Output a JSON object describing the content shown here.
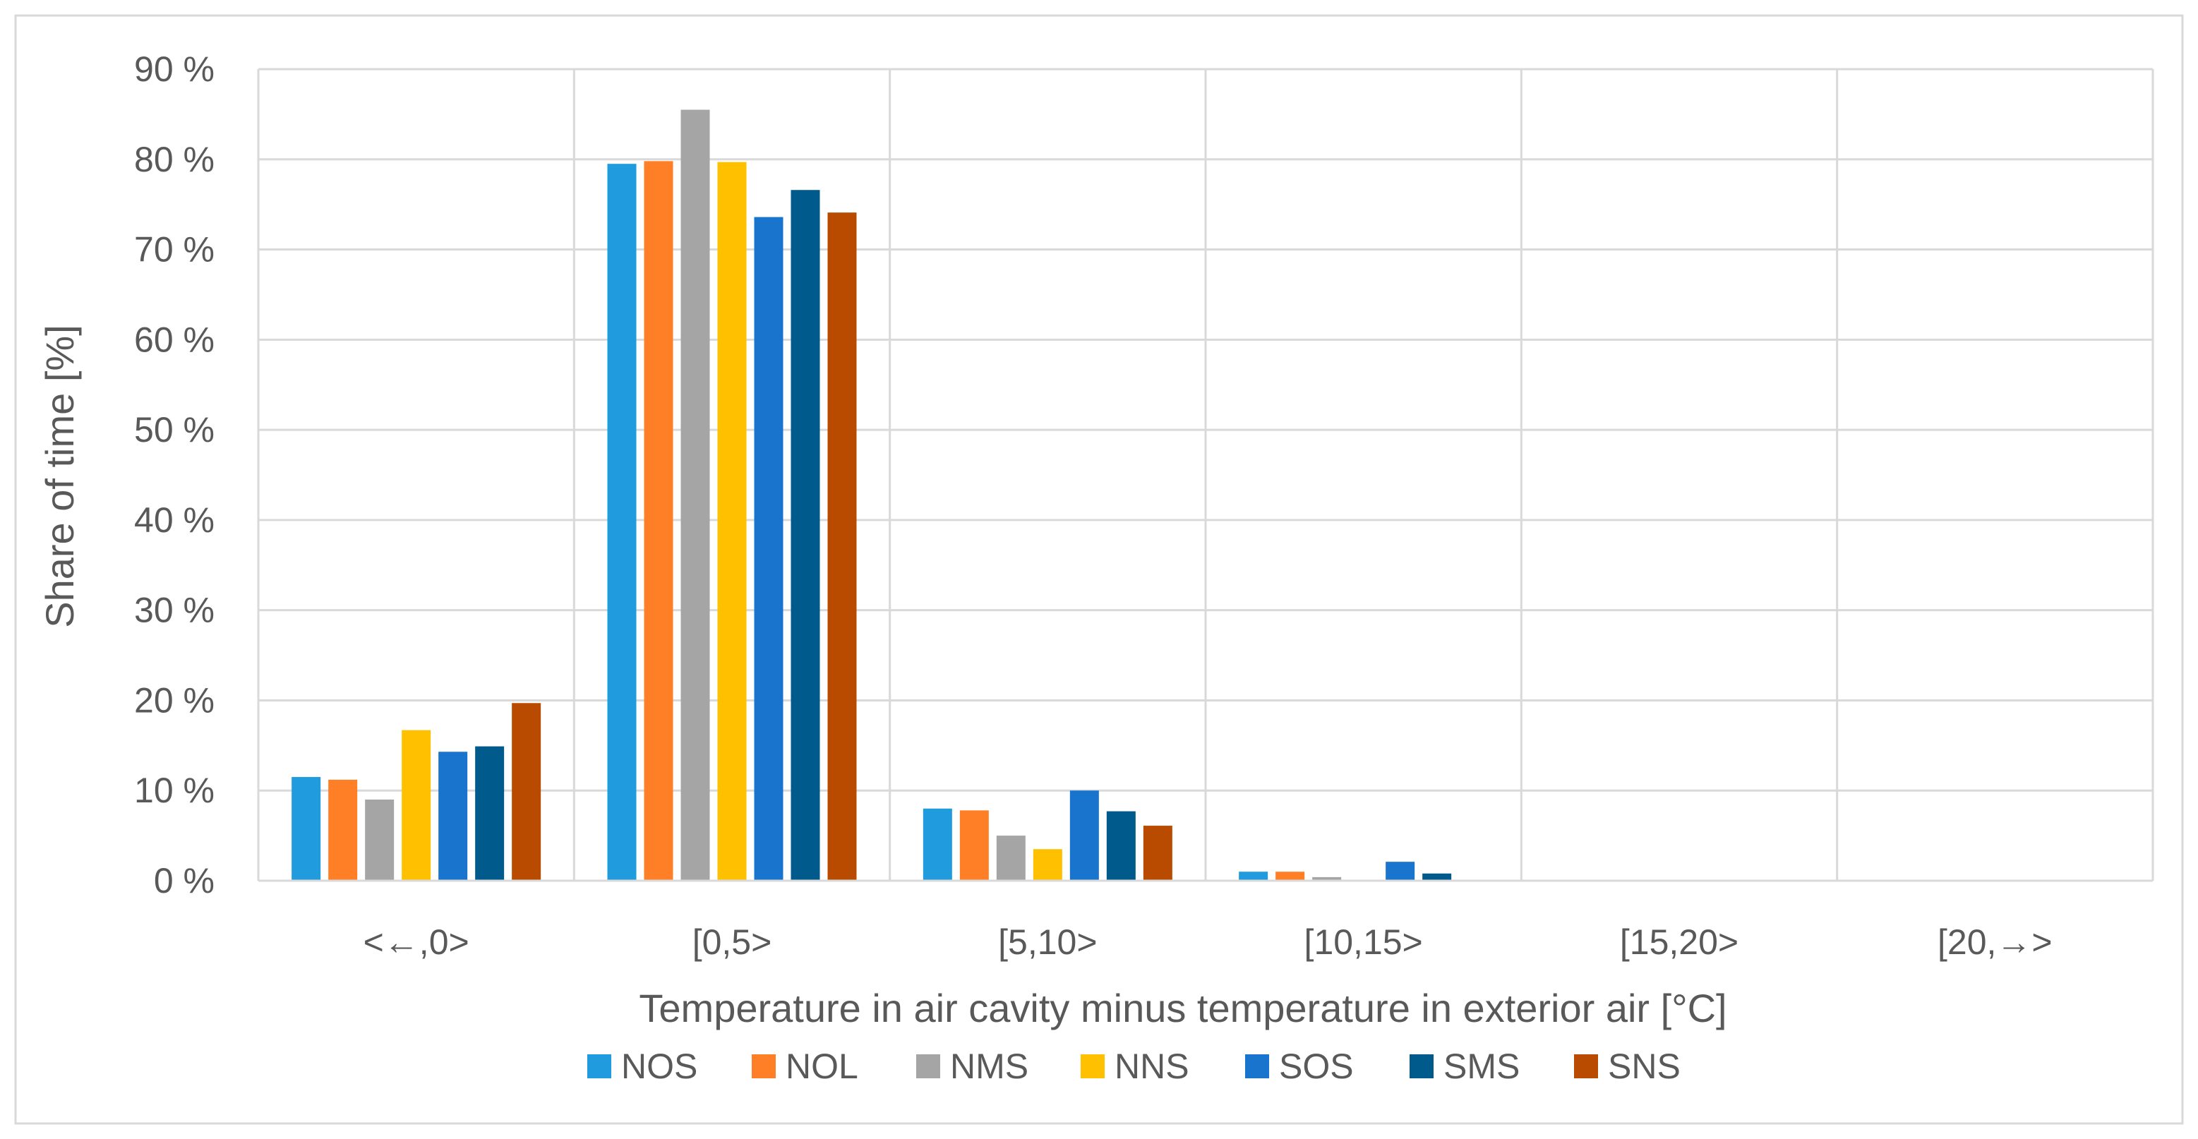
{
  "chart_data": {
    "type": "bar",
    "title": "",
    "xlabel": "Temperature in air cavity minus temperature in exterior air [°C]",
    "ylabel": "Share of time [%]",
    "ylim": [
      0,
      90
    ],
    "y_ticks": [
      0,
      10,
      20,
      30,
      40,
      50,
      60,
      70,
      80,
      90
    ],
    "y_tick_labels": [
      "0 %",
      "10 %",
      "20 %",
      "30 %",
      "40 %",
      "50 %",
      "60 %",
      "70 %",
      "80 %",
      "90 %"
    ],
    "grid": true,
    "legend_position": "bottom",
    "categories": [
      "<←,0>",
      "[0,5>",
      "[5,10>",
      "[10,15>",
      "[15,20>",
      "[20,→>"
    ],
    "series": [
      {
        "name": "NOS",
        "color": "#1F9BDE",
        "values": [
          11.5,
          79.5,
          8.0,
          1.0,
          0.0,
          0.0
        ]
      },
      {
        "name": "NOL",
        "color": "#FF7F27",
        "values": [
          11.2,
          79.8,
          7.8,
          1.0,
          0.0,
          0.0
        ]
      },
      {
        "name": "NMS",
        "color": "#A5A5A5",
        "values": [
          9.0,
          85.5,
          5.0,
          0.4,
          0.0,
          0.0
        ]
      },
      {
        "name": "NNS",
        "color": "#FFC000",
        "values": [
          16.7,
          79.7,
          3.5,
          0.1,
          0.0,
          0.0
        ]
      },
      {
        "name": "SOS",
        "color": "#1874CD",
        "values": [
          14.3,
          73.6,
          10.0,
          2.1,
          0.0,
          0.0
        ]
      },
      {
        "name": "SMS",
        "color": "#005A8C",
        "values": [
          14.9,
          76.6,
          7.7,
          0.8,
          0.0,
          0.0
        ]
      },
      {
        "name": "SNS",
        "color": "#B84B00",
        "values": [
          19.7,
          74.1,
          6.1,
          0.1,
          0.0,
          0.0
        ]
      }
    ]
  }
}
